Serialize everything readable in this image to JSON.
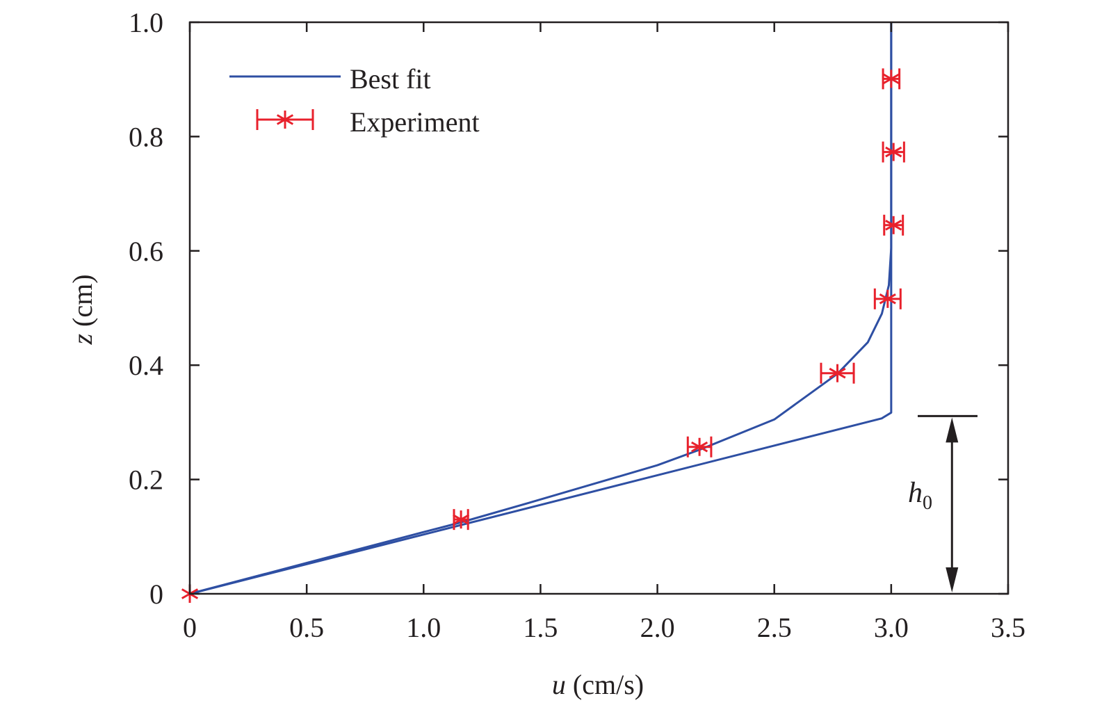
{
  "chart_data": {
    "type": "line",
    "xlabel_var": "u",
    "xlabel_unit": " (cm/s)",
    "ylabel_var": "z",
    "ylabel_unit": " (cm)",
    "xlim": [
      0,
      3.5
    ],
    "ylim": [
      0,
      1.0
    ],
    "xticks": [
      0,
      0.5,
      1.0,
      1.5,
      2.0,
      2.5,
      3.0,
      3.5
    ],
    "xtick_labels": [
      "0",
      "0.5",
      "1.0",
      "1.5",
      "2.0",
      "2.5",
      "3.0",
      "3.5"
    ],
    "yticks": [
      0,
      0.2,
      0.4,
      0.6,
      0.8,
      1.0
    ],
    "ytick_labels": [
      "0",
      "0.2",
      "0.4",
      "0.6",
      "0.8",
      "1.0"
    ],
    "grid": false,
    "legend_placement": "top-left",
    "colors": {
      "fit": "#2e4fa3",
      "experiment": "#e8212c",
      "axis": "#231f20"
    },
    "series": [
      {
        "name": "Best fit",
        "kind": "line",
        "lines": [
          {
            "x": [
              0,
              0.5,
              1.0,
              1.16,
              1.5,
              2.0,
              2.18,
              2.5,
              2.77,
              2.9,
              2.96,
              2.99,
              3.0,
              3.0
            ],
            "y": [
              0,
              0.054,
              0.108,
              0.125,
              0.165,
              0.225,
              0.252,
              0.305,
              0.385,
              0.44,
              0.49,
              0.54,
              0.605,
              1.0
            ]
          },
          {
            "x": [
              0,
              2.96,
              3.0,
              3.0
            ],
            "y": [
              0,
              0.307,
              0.317,
              1.0
            ]
          }
        ]
      },
      {
        "name": "Experiment",
        "kind": "scatter-errorbar",
        "x": [
          0,
          1.16,
          2.18,
          2.77,
          2.985,
          3.01,
          3.01,
          3.0
        ],
        "y": [
          0,
          0.13,
          0.257,
          0.386,
          0.516,
          0.645,
          0.773,
          0.901
        ],
        "x_err": [
          0,
          0.03,
          0.05,
          0.07,
          0.055,
          0.04,
          0.045,
          0.035
        ]
      }
    ],
    "annotation": {
      "label_var": "h",
      "label_sub": "0",
      "u": 3.26,
      "z_from": 0,
      "z_to": 0.311
    }
  }
}
